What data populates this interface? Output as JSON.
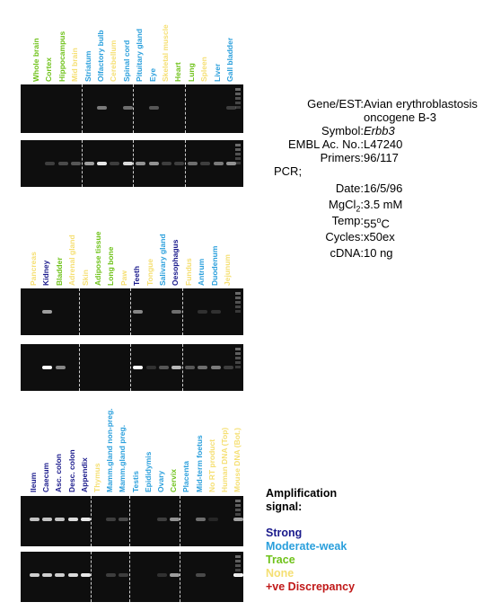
{
  "panels": [
    {
      "lanes": [
        {
          "label": "Whole brain",
          "class": "trace",
          "bands": [
            0,
            0
          ]
        },
        {
          "label": "Cortex",
          "class": "trace",
          "bands": [
            0,
            0.2
          ]
        },
        {
          "label": "Hippocampus",
          "class": "trace",
          "bands": [
            0,
            0.25
          ]
        },
        {
          "label": "Mid brain",
          "class": "none",
          "bands": [
            0,
            0.3
          ]
        },
        {
          "label": "Striatum",
          "class": "moderate",
          "bands": [
            0,
            0.6
          ]
        },
        {
          "label": "Olfactory bulb",
          "class": "moderate",
          "bands": [
            0.45,
            0.9
          ]
        },
        {
          "label": "Cerebellum",
          "class": "none",
          "bands": [
            0,
            0.2
          ]
        },
        {
          "label": "Spinal cord",
          "class": "moderate",
          "bands": [
            0.4,
            0.85
          ]
        },
        {
          "label": "Pituitary gland",
          "class": "moderate",
          "bands": [
            0,
            0.55
          ]
        },
        {
          "label": "Eye",
          "class": "moderate",
          "bands": [
            0.3,
            0.55
          ]
        },
        {
          "label": "Skeletal muscle",
          "class": "none",
          "bands": [
            0,
            0.2
          ]
        },
        {
          "label": "Heart",
          "class": "trace",
          "bands": [
            0,
            0.2
          ]
        },
        {
          "label": "Lung",
          "class": "trace",
          "bands": [
            0,
            0.4
          ]
        },
        {
          "label": "Spleen",
          "class": "none",
          "bands": [
            0,
            0.2
          ]
        },
        {
          "label": "Liver",
          "class": "moderate",
          "bands": [
            0,
            0.45
          ]
        },
        {
          "label": "Gall bladder",
          "class": "moderate",
          "bands": [
            0.2,
            0.55
          ]
        }
      ]
    },
    {
      "lanes": [
        {
          "label": "Pancreas",
          "class": "none",
          "bands": [
            0,
            0
          ]
        },
        {
          "label": "Kidney",
          "class": "strong",
          "bands": [
            0.6,
            1
          ]
        },
        {
          "label": "Bladder",
          "class": "trace",
          "bands": [
            0,
            0.5
          ]
        },
        {
          "label": "Adrenal gland",
          "class": "none",
          "bands": [
            0,
            0
          ]
        },
        {
          "label": "Skin",
          "class": "none",
          "bands": [
            0,
            0
          ]
        },
        {
          "label": "Adipose tissue",
          "class": "trace",
          "bands": [
            0,
            0
          ]
        },
        {
          "label": "Long bone",
          "class": "trace",
          "bands": [
            0,
            0
          ]
        },
        {
          "label": "Paw",
          "class": "none",
          "bands": [
            0,
            0
          ]
        },
        {
          "label": "Teeth",
          "class": "strong",
          "bands": [
            0.5,
            1
          ]
        },
        {
          "label": "Tongue",
          "class": "none",
          "bands": [
            0,
            0.15
          ]
        },
        {
          "label": "Salivary gland",
          "class": "moderate",
          "bands": [
            0,
            0.3
          ]
        },
        {
          "label": "Oesophagus",
          "class": "strong",
          "bands": [
            0.4,
            0.7
          ]
        },
        {
          "label": "Fundus",
          "class": "none",
          "bands": [
            0,
            0.3
          ]
        },
        {
          "label": "Antrum",
          "class": "moderate",
          "bands": [
            0.15,
            0.4
          ]
        },
        {
          "label": "Duodenum",
          "class": "moderate",
          "bands": [
            0.15,
            0.45
          ]
        },
        {
          "label": "Jejunum",
          "class": "none",
          "bands": [
            0,
            0.2
          ]
        }
      ]
    },
    {
      "lanes": [
        {
          "label": "Ileum",
          "class": "strong",
          "bands": [
            0.75,
            0.8
          ]
        },
        {
          "label": "Caecum",
          "class": "strong",
          "bands": [
            0.75,
            0.8
          ]
        },
        {
          "label": "Asc. colon",
          "class": "strong",
          "bands": [
            0.75,
            0.8
          ]
        },
        {
          "label": "Desc. colon",
          "class": "strong",
          "bands": [
            0.85,
            0.85
          ]
        },
        {
          "label": "Appendix",
          "class": "strong",
          "bands": [
            0.9,
            0.9
          ]
        },
        {
          "label": "Thymus",
          "class": "none",
          "bands": [
            0,
            0
          ]
        },
        {
          "label": "Mamm.gland non-preg.",
          "class": "moderate",
          "bands": [
            0.2,
            0.2
          ]
        },
        {
          "label": "Mamm.gland preg.",
          "class": "moderate",
          "bands": [
            0.25,
            0.2
          ]
        },
        {
          "label": "Testis",
          "class": "moderate",
          "bands": [
            0,
            0
          ]
        },
        {
          "label": "Epididymis",
          "class": "moderate",
          "bands": [
            0,
            0
          ]
        },
        {
          "label": "Ovary",
          "class": "moderate",
          "bands": [
            0.2,
            0.15
          ]
        },
        {
          "label": "Cervix",
          "class": "trace",
          "bands": [
            0.55,
            0.6
          ]
        },
        {
          "label": "Placenta",
          "class": "moderate",
          "bands": [
            0,
            0
          ]
        },
        {
          "label": "Mid-term foetus",
          "class": "moderate",
          "bands": [
            0.4,
            0.25
          ]
        },
        {
          "label": "No RT product",
          "class": "none",
          "bands": [
            0.1,
            0
          ]
        },
        {
          "label": "Human DNA (Top)",
          "class": "none",
          "bands": [
            0,
            0
          ]
        },
        {
          "label": "Mouse DNA (Bot.)",
          "class": "none",
          "bands": [
            0.6,
            1
          ]
        }
      ]
    }
  ],
  "info": {
    "gene_key": "Gene/EST:",
    "gene_value_1": "Avian erythroblastosis",
    "gene_value_2": "oncogene B-3",
    "symbol_key": "Symbol:",
    "symbol_value": "Erbb3",
    "embl_key": "EMBL Ac. No.:",
    "embl_value": "L47240",
    "primers_key": "Primers:",
    "primers_value": "96/117",
    "pcr_label": "PCR;",
    "date_key": "Date:",
    "date_value": "16/5/96",
    "mgcl_key_1": "MgCl",
    "mgcl_key_sub": "2",
    "mgcl_key_2": ":",
    "mgcl_value": "3.5 mM",
    "temp_key": "Temp:",
    "temp_value_1": "55",
    "temp_value_sup": "o",
    "temp_value_2": "C",
    "cycles_key": "Cycles:",
    "cycles_value": "x50ex",
    "cdna_key": "cDNA:",
    "cdna_value": "10 ng"
  },
  "legend": {
    "title_1": "Amplification",
    "title_2": "signal:",
    "strong": "Strong",
    "moderate": "Moderate-weak",
    "trace": "Trace",
    "none": "None",
    "discrepancy": "+ve Discrepancy"
  },
  "colors": {
    "strong": "#1a1a8c",
    "moderate": "#2a9fdc",
    "trace": "#6fc21a",
    "none": "#f5df72",
    "discrepancy": "#c01818"
  }
}
